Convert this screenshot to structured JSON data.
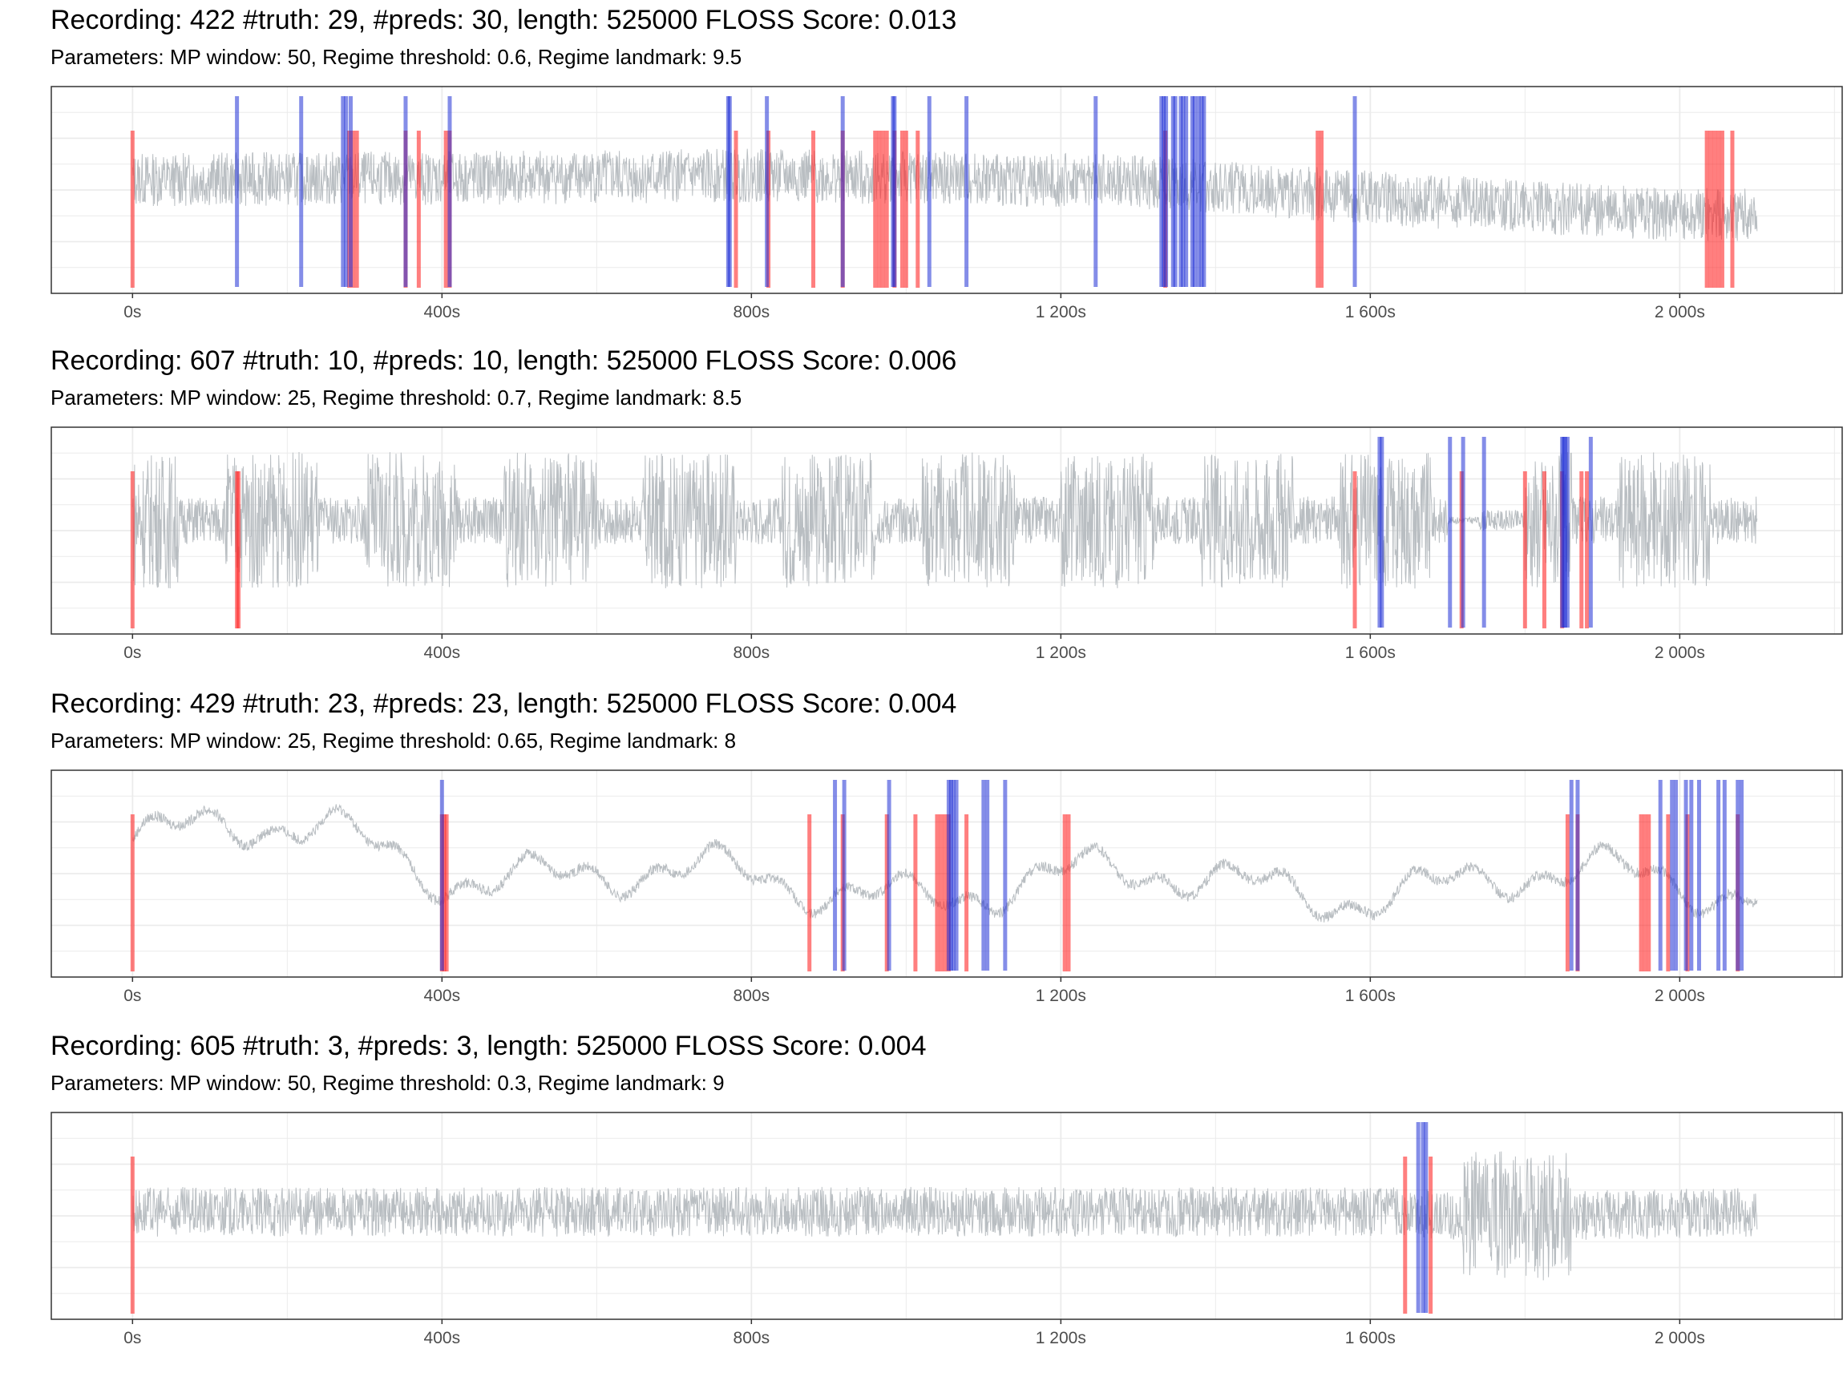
{
  "chart_data": [
    {
      "type": "line",
      "title": "Recording: 422 #truth: 29, #preds: 30, length: 525000 FLOSS Score: 0.013",
      "subtitle": "Parameters: MP window: 50, Regime threshold: 0.6, Regime landmark: 9.5",
      "xlim": [
        -105,
        2210
      ],
      "xticks": [
        0,
        400,
        800,
        1200,
        1600,
        2000
      ],
      "xtick_labels": [
        "0s",
        "400s",
        "800s",
        "1 200s",
        "1 600s",
        "2 000s"
      ],
      "signal": {
        "style": "noise",
        "baseline": 0.55,
        "amplitude": 0.13,
        "segments": [
          [
            0,
            0.55
          ],
          [
            500,
            0.56
          ],
          [
            800,
            0.57
          ],
          [
            1300,
            0.54
          ],
          [
            1650,
            0.45
          ],
          [
            2000,
            0.38
          ],
          [
            2100,
            0.38
          ]
        ]
      },
      "truth": [
        0,
        280,
        285,
        290,
        353,
        370,
        405,
        410,
        780,
        822,
        880,
        918,
        960,
        965,
        970,
        975,
        985,
        995,
        1000,
        1015,
        1335,
        1532,
        1537,
        2035,
        2040,
        2045,
        2050,
        2055,
        2068
      ],
      "preds": [
        135,
        218,
        272,
        276,
        282,
        353,
        410,
        770,
        772,
        820,
        918,
        983,
        985,
        1030,
        1078,
        1245,
        1330,
        1333,
        1336,
        1345,
        1348,
        1355,
        1358,
        1362,
        1370,
        1373,
        1378,
        1382,
        1385,
        1580
      ]
    },
    {
      "type": "line",
      "title": "Recording: 607 #truth: 10, #preds: 10, length: 525000 FLOSS Score: 0.006",
      "subtitle": "Parameters: MP window: 25, Regime threshold: 0.7, Regime landmark: 8.5",
      "xlim": [
        -105,
        2210
      ],
      "xticks": [
        0,
        400,
        800,
        1200,
        1600,
        2000
      ],
      "xtick_labels": [
        "0s",
        "400s",
        "800s",
        "1 200s",
        "1 600s",
        "2 000s"
      ],
      "signal": {
        "style": "bursty",
        "baseline": 0.55,
        "amplitude": 0.33,
        "segments": [
          [
            0,
            0.55
          ],
          [
            1580,
            0.55
          ],
          [
            1700,
            0.55
          ],
          [
            2100,
            0.55
          ]
        ]
      },
      "truth": [
        0,
        135,
        137,
        1580,
        1718,
        1800,
        1825,
        1848,
        1873,
        1880
      ],
      "preds": [
        1612,
        1615,
        1703,
        1720,
        1747,
        1848,
        1852,
        1885,
        1855,
        1850
      ]
    },
    {
      "type": "line",
      "title": "Recording: 429 #truth: 23, #preds: 23, length: 525000 FLOSS Score: 0.004",
      "subtitle": "Parameters: MP window: 25, Regime threshold: 0.65, Regime landmark: 8",
      "xlim": [
        -105,
        2210
      ],
      "xticks": [
        0,
        400,
        800,
        1200,
        1600,
        2000
      ],
      "xtick_labels": [
        "0s",
        "400s",
        "800s",
        "1 200s",
        "1 600s",
        "2 000s"
      ],
      "signal": {
        "style": "wave",
        "baseline": 0.45,
        "amplitude": 0.18,
        "segments": [
          [
            0,
            0.66
          ],
          [
            100,
            0.66
          ],
          [
            250,
            0.7
          ],
          [
            400,
            0.55
          ],
          [
            700,
            0.45
          ],
          [
            1000,
            0.45
          ],
          [
            1400,
            0.45
          ],
          [
            2100,
            0.45
          ]
        ]
      },
      "truth": [
        0,
        400,
        403,
        406,
        875,
        918,
        975,
        1012,
        1040,
        1045,
        1050,
        1055,
        1078,
        1205,
        1210,
        1855,
        1868,
        1950,
        1955,
        1960,
        1985,
        2010,
        2075
      ],
      "preds": [
        400,
        908,
        920,
        978,
        1055,
        1058,
        1061,
        1065,
        1100,
        1105,
        1128,
        1860,
        1868,
        1975,
        1990,
        1995,
        2008,
        2015,
        2025,
        2050,
        2058,
        2075,
        2080
      ]
    },
    {
      "type": "line",
      "title": "Recording: 605 #truth: 3, #preds: 3, length: 525000 FLOSS Score: 0.004",
      "subtitle": "Parameters: MP window: 50, Regime threshold: 0.3, Regime landmark: 9",
      "xlim": [
        -105,
        2210
      ],
      "xticks": [
        0,
        400,
        800,
        1200,
        1600,
        2000
      ],
      "xtick_labels": [
        "0s",
        "400s",
        "800s",
        "1 200s",
        "1 600s",
        "2 000s"
      ],
      "signal": {
        "style": "noise",
        "baseline": 0.52,
        "amplitude": 0.12,
        "segments": [
          [
            0,
            0.52
          ],
          [
            1650,
            0.52
          ],
          [
            1700,
            0.5
          ],
          [
            1850,
            0.5
          ],
          [
            2100,
            0.52
          ]
        ]
      },
      "truth": [
        0,
        1645,
        1678
      ],
      "preds": [
        1662,
        1668,
        1672
      ]
    }
  ]
}
